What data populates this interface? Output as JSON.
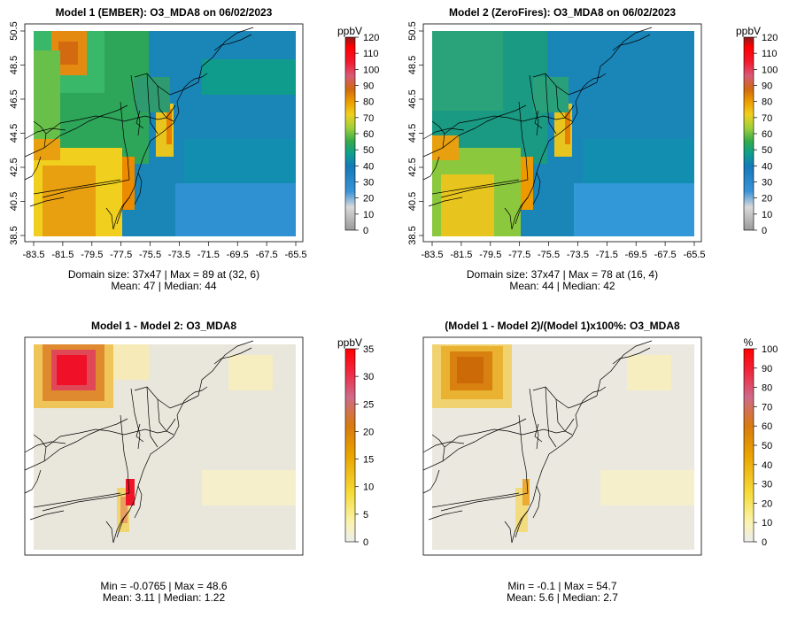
{
  "figure": {
    "panels": [
      {
        "title": "Model 1 (EMBER): O3_MDA8 on 06/02/2023",
        "colorbar_unit": "ppbV",
        "colorbar_ticks": [
          "0",
          "10",
          "20",
          "30",
          "40",
          "50",
          "60",
          "70",
          "80",
          "90",
          "100",
          "110",
          "120"
        ],
        "xticks": [
          "-83.5",
          "-81.5",
          "-79.5",
          "-77.5",
          "-75.5",
          "-73.5",
          "-71.5",
          "-69.5",
          "-67.5",
          "-65.5"
        ],
        "yticks": [
          "38.5",
          "40.5",
          "42.5",
          "44.5",
          "46.5",
          "48.5",
          "50.5"
        ],
        "stats_line1": "Domain size: 37x47 | Max = 89 at (32, 6)",
        "stats_line2": "Mean: 47 |  Median: 44"
      },
      {
        "title": "Model 2 (ZeroFires): O3_MDA8 on 06/02/2023",
        "colorbar_unit": "ppbV",
        "colorbar_ticks": [
          "0",
          "10",
          "20",
          "30",
          "40",
          "50",
          "60",
          "70",
          "80",
          "90",
          "100",
          "110",
          "120"
        ],
        "xticks": [
          "-83.5",
          "-81.5",
          "-79.5",
          "-77.5",
          "-75.5",
          "-73.5",
          "-71.5",
          "-69.5",
          "-67.5",
          "-65.5"
        ],
        "yticks": [
          "38.5",
          "40.5",
          "42.5",
          "44.5",
          "46.5",
          "48.5",
          "50.5"
        ],
        "stats_line1": "Domain size: 37x47 | Max = 78 at (16, 4)",
        "stats_line2": "Mean: 44 |  Median: 42"
      },
      {
        "title": "Model 1 - Model 2: O3_MDA8",
        "colorbar_unit": "ppbV",
        "colorbar_ticks": [
          "0",
          "5",
          "10",
          "15",
          "20",
          "25",
          "30",
          "35"
        ],
        "stats_line1": "Min = -0.0765 | Max = 48.6",
        "stats_line2": "Mean: 3.11 |  Median: 1.22"
      },
      {
        "title": "(Model 1 - Model 2)/(Model 1)x100%: O3_MDA8",
        "colorbar_unit": "%",
        "colorbar_ticks": [
          "0",
          "10",
          "20",
          "30",
          "40",
          "50",
          "60",
          "70",
          "80",
          "90",
          "100"
        ],
        "stats_line1": "Min = -0.1 | Max = 54.7",
        "stats_line2": "Mean: 5.6 |  Median: 2.7"
      }
    ]
  },
  "chart_data": [
    {
      "type": "heatmap",
      "title": "Model 1 (EMBER): O3_MDA8 on 06/02/2023",
      "variable": "O3_MDA8",
      "units": "ppbV",
      "date": "06/02/2023",
      "grid": [
        37,
        47
      ],
      "x_range": [
        -83.5,
        -65.5
      ],
      "y_range": [
        38.5,
        50.5
      ],
      "color_range": [
        0,
        120
      ],
      "max": 89,
      "max_at": [
        32,
        6
      ],
      "mean": 47,
      "median": 44,
      "palette": [
        "#9a9a9a",
        "#d7d7d7",
        "#2e86d3",
        "#1578b8",
        "#0f9c8c",
        "#2fa84f",
        "#8ccb3a",
        "#e8c61e",
        "#e98a00",
        "#c95b00",
        "#e04858",
        "#f01020",
        "#ff0000",
        "#8b1a1a"
      ]
    },
    {
      "type": "heatmap",
      "title": "Model 2 (ZeroFires): O3_MDA8 on 06/02/2023",
      "variable": "O3_MDA8",
      "units": "ppbV",
      "date": "06/02/2023",
      "grid": [
        37,
        47
      ],
      "x_range": [
        -83.5,
        -65.5
      ],
      "y_range": [
        38.5,
        50.5
      ],
      "color_range": [
        0,
        120
      ],
      "max": 78,
      "max_at": [
        16,
        4
      ],
      "mean": 44,
      "median": 42
    },
    {
      "type": "heatmap",
      "title": "Model 1 - Model 2: O3_MDA8",
      "units": "ppbV",
      "color_range": [
        0,
        35
      ],
      "min": -0.0765,
      "max": 48.6,
      "mean": 3.11,
      "median": 1.22
    },
    {
      "type": "heatmap",
      "title": "(Model 1 - Model 2)/(Model 1)x100%: O3_MDA8",
      "units": "%",
      "color_range": [
        0,
        100
      ],
      "min": -0.1,
      "max": 54.7,
      "mean": 5.6,
      "median": 2.7
    }
  ]
}
